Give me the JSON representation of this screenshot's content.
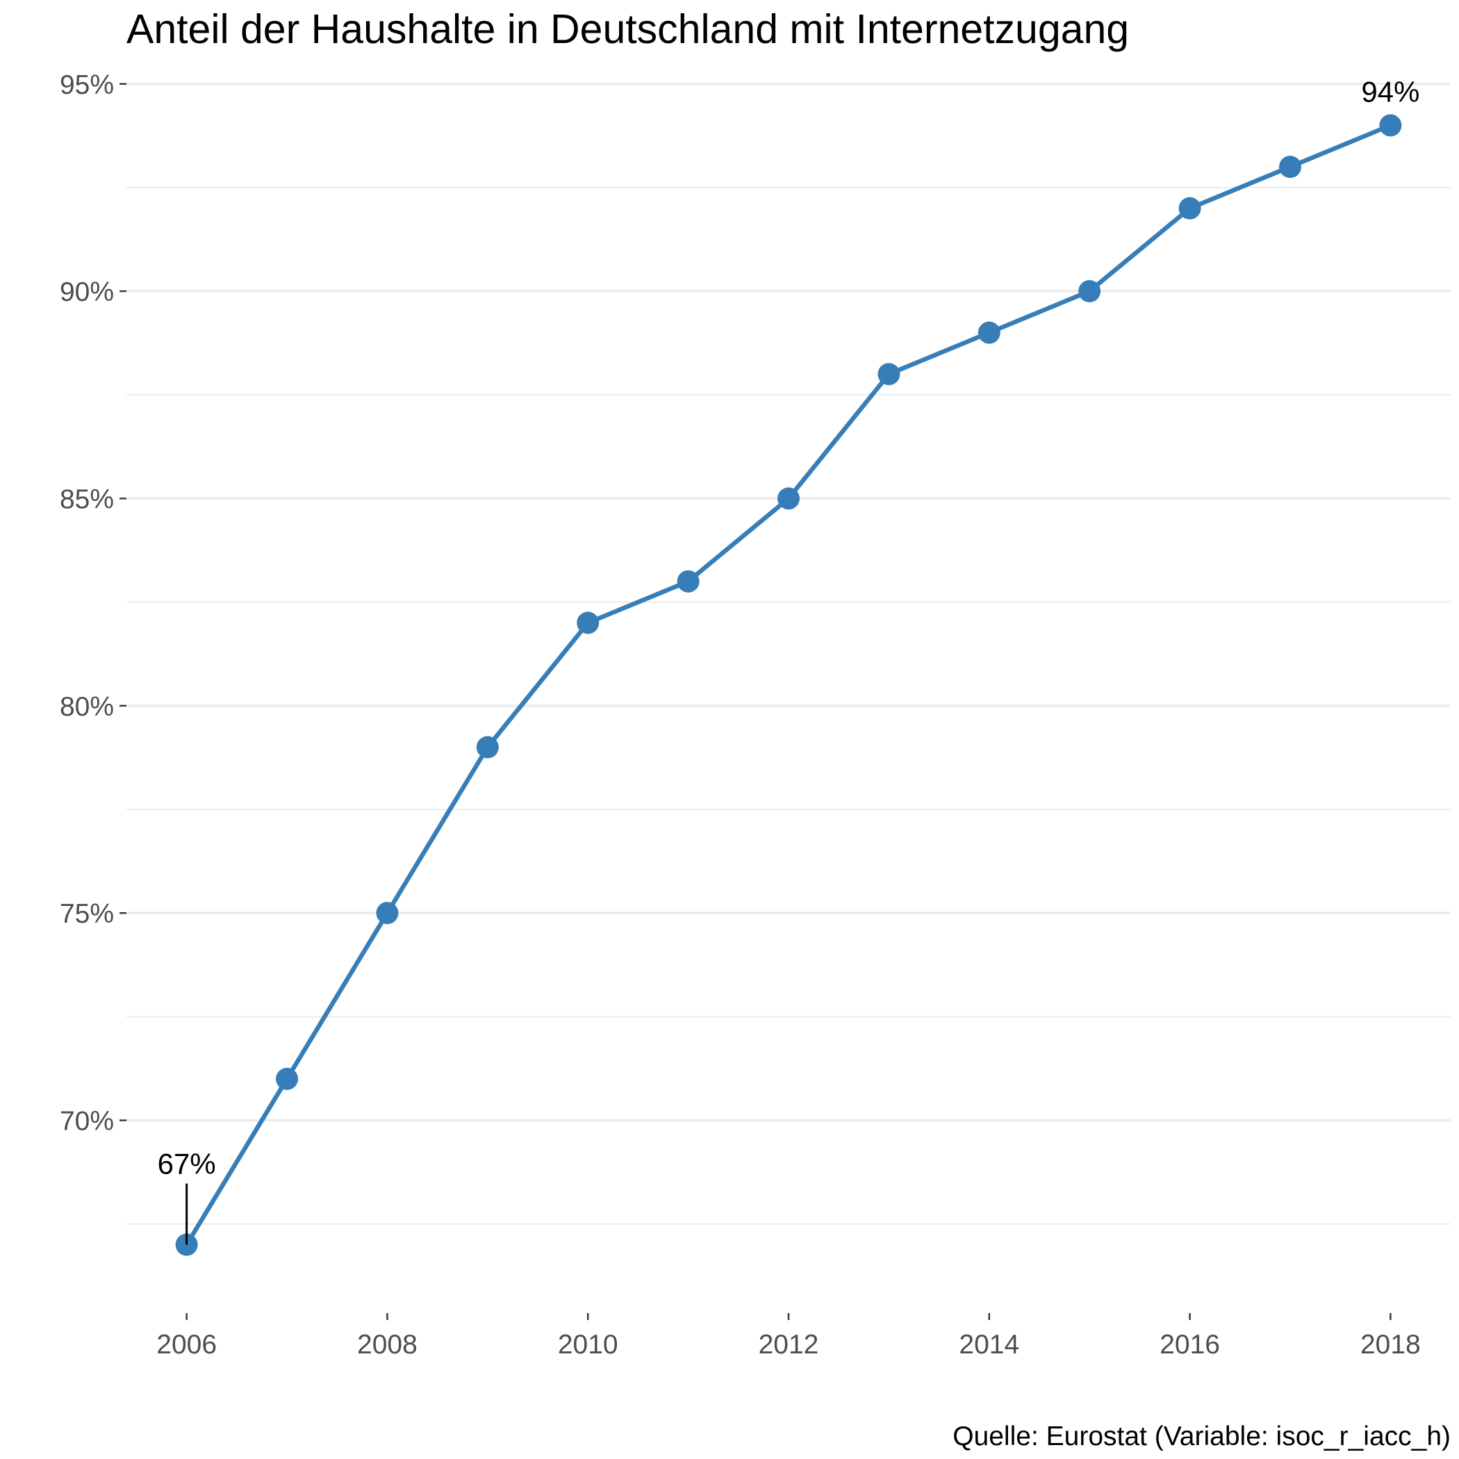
{
  "chart_data": {
    "type": "line",
    "title": "Anteil der Haushalte in Deutschland mit Internetzugang",
    "caption": "Quelle: Eurostat (Variable: isoc_r_iacc_h)",
    "xlabel": "",
    "ylabel": "",
    "x": [
      2006,
      2007,
      2008,
      2009,
      2010,
      2011,
      2012,
      2013,
      2014,
      2015,
      2016,
      2017,
      2018
    ],
    "series": [
      {
        "values": [
          67,
          71,
          75,
          79,
          82,
          83,
          85,
          88,
          89,
          90,
          92,
          93,
          94
        ],
        "color": "#377eb8"
      }
    ],
    "xlim": [
      2005.4,
      2018.6
    ],
    "ylim": [
      65.35,
      95.65
    ],
    "x_ticks": [
      2006,
      2008,
      2010,
      2012,
      2014,
      2016,
      2018
    ],
    "x_tick_labels": [
      "2006",
      "2008",
      "2010",
      "2012",
      "2014",
      "2016",
      "2018"
    ],
    "y_ticks": [
      70,
      75,
      80,
      85,
      90,
      95
    ],
    "y_tick_labels": [
      "70%",
      "75%",
      "80%",
      "85%",
      "90%",
      "95%"
    ],
    "y_minor_ticks": [
      67.5,
      72.5,
      77.5,
      82.5,
      87.5,
      92.5
    ],
    "grid": true,
    "legend": "none",
    "annotations": [
      {
        "x": 2006,
        "y": 67,
        "label": "67%",
        "leader_line": true
      },
      {
        "x": 2018,
        "y": 94,
        "label": "94%",
        "leader_line": false
      }
    ]
  }
}
